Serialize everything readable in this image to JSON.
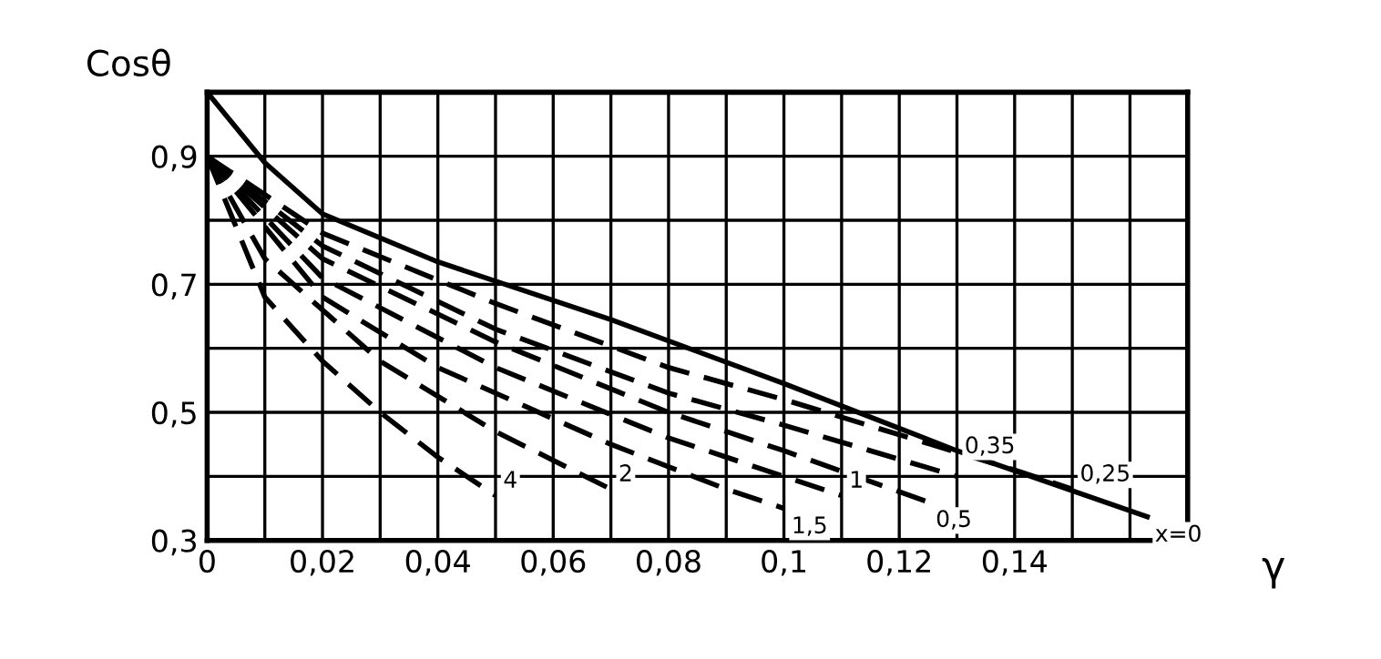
{
  "chart_data": {
    "type": "line",
    "xlabel": "γ",
    "ylabel": "Cosθ",
    "xlim": [
      0,
      0.17
    ],
    "ylim": [
      0.3,
      1.0
    ],
    "xticks": [
      {
        "value": 0,
        "label": "0"
      },
      {
        "value": 0.01,
        "label": null
      },
      {
        "value": 0.02,
        "label": "0,02"
      },
      {
        "value": 0.03,
        "label": null
      },
      {
        "value": 0.04,
        "label": "0,04"
      },
      {
        "value": 0.05,
        "label": null
      },
      {
        "value": 0.06,
        "label": "0,06"
      },
      {
        "value": 0.07,
        "label": null
      },
      {
        "value": 0.08,
        "label": "0,08"
      },
      {
        "value": 0.09,
        "label": null
      },
      {
        "value": 0.1,
        "label": "0,1"
      },
      {
        "value": 0.11,
        "label": null
      },
      {
        "value": 0.12,
        "label": "0,12"
      },
      {
        "value": 0.13,
        "label": null
      },
      {
        "value": 0.14,
        "label": "0,14"
      },
      {
        "value": 0.15,
        "label": null
      },
      {
        "value": 0.16,
        "label": null
      },
      {
        "value": 0.17,
        "label": null
      }
    ],
    "yticks": [
      {
        "value": 0.3,
        "label": "0,3"
      },
      {
        "value": 0.4,
        "label": null
      },
      {
        "value": 0.5,
        "label": "0,5"
      },
      {
        "value": 0.6,
        "label": null
      },
      {
        "value": 0.7,
        "label": "0,7"
      },
      {
        "value": 0.8,
        "label": null
      },
      {
        "value": 0.9,
        "label": "0,9"
      },
      {
        "value": 1.0,
        "label": null
      }
    ],
    "grid": true,
    "legend": false,
    "marker": "none",
    "series": [
      {
        "name": "x=0",
        "color": "#000000",
        "line_style": "solid",
        "x": [
          0,
          0.01,
          0.02,
          0.04,
          0.07,
          0.1,
          0.13,
          0.163
        ],
        "values": [
          1.0,
          0.89,
          0.81,
          0.735,
          0.645,
          0.545,
          0.44,
          0.337
        ]
      },
      {
        "name": "0,25",
        "color": "#000000",
        "line_style": "dashed",
        "x": [
          0,
          0.02,
          0.05,
          0.08,
          0.1,
          0.14,
          0.15
        ],
        "values": [
          0.9,
          0.78,
          0.67,
          0.57,
          0.52,
          0.41,
          0.38
        ]
      },
      {
        "name": "0,35",
        "color": "#000000",
        "line_style": "dashed",
        "x": [
          0,
          0.02,
          0.05,
          0.08,
          0.1,
          0.13
        ],
        "values": [
          0.9,
          0.76,
          0.63,
          0.53,
          0.48,
          0.4
        ]
      },
      {
        "name": "0,5",
        "color": "#000000",
        "line_style": "dashed",
        "x": [
          0,
          0.02,
          0.05,
          0.08,
          0.1,
          0.125
        ],
        "values": [
          0.9,
          0.74,
          0.61,
          0.5,
          0.44,
          0.36
        ]
      },
      {
        "name": "1",
        "color": "#000000",
        "line_style": "dashed",
        "x": [
          0,
          0.02,
          0.05,
          0.08,
          0.1,
          0.11
        ],
        "values": [
          0.9,
          0.71,
          0.57,
          0.46,
          0.4,
          0.37
        ]
      },
      {
        "name": "1,5",
        "color": "#000000",
        "line_style": "dashed",
        "x": [
          0,
          0.02,
          0.04,
          0.07,
          0.09,
          0.1
        ],
        "values": [
          0.9,
          0.68,
          0.57,
          0.45,
          0.38,
          0.35
        ]
      },
      {
        "name": "2",
        "color": "#000000",
        "line_style": "dashed",
        "x": [
          0,
          0.01,
          0.03,
          0.05,
          0.07
        ],
        "values": [
          0.9,
          0.74,
          0.58,
          0.47,
          0.38
        ]
      },
      {
        "name": "4",
        "color": "#000000",
        "line_style": "dashed",
        "x": [
          0,
          0.01,
          0.02,
          0.03,
          0.04,
          0.05
        ],
        "values": [
          0.9,
          0.68,
          0.58,
          0.5,
          0.43,
          0.37
        ]
      }
    ]
  }
}
